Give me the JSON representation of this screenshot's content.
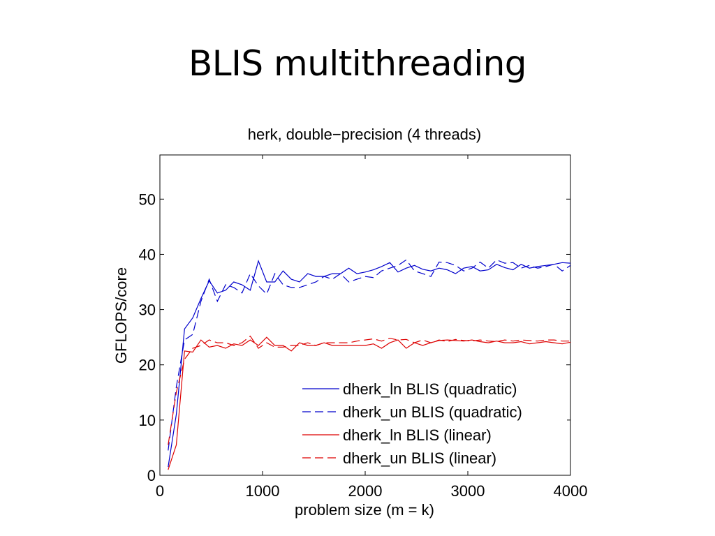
{
  "slide": {
    "title": "BLIS multithreading"
  },
  "chart_data": {
    "type": "line",
    "title": "herk, double−precision (4 threads)",
    "xlabel": "problem size (m = k)",
    "ylabel": "GFLOPS/core",
    "xlim": [
      0,
      4000
    ],
    "ylim": [
      0,
      58
    ],
    "xticks": [
      0,
      1000,
      2000,
      3000,
      4000
    ],
    "xtick_labels": [
      "0",
      "1000",
      "2000",
      "3000",
      "4000"
    ],
    "yticks": [
      0,
      10,
      20,
      30,
      40,
      50
    ],
    "ytick_labels": [
      "0",
      "10",
      "20",
      "30",
      "40",
      "50"
    ],
    "grid": false,
    "legend_position": "bottom-right",
    "x": [
      80,
      160,
      240,
      320,
      400,
      480,
      560,
      640,
      720,
      800,
      880,
      960,
      1040,
      1120,
      1200,
      1280,
      1360,
      1440,
      1520,
      1600,
      1680,
      1760,
      1840,
      1920,
      2000,
      2080,
      2160,
      2240,
      2320,
      2400,
      2480,
      2560,
      2640,
      2720,
      2800,
      2880,
      2960,
      3040,
      3120,
      3200,
      3280,
      3360,
      3440,
      3520,
      3600,
      3680,
      3760,
      3840,
      3920,
      4000
    ],
    "series": [
      {
        "name": "dherk_ln BLIS (quadratic)",
        "color": "#0000cc",
        "dash": "solid",
        "values": [
          1.5,
          11,
          26.5,
          28.5,
          32,
          35.2,
          33,
          33.5,
          35,
          34.5,
          33.5,
          38.8,
          35,
          35,
          37,
          35.5,
          35,
          36.5,
          36,
          36,
          36.5,
          36.5,
          37.5,
          36.5,
          36.8,
          37.2,
          37.8,
          38.5,
          36.8,
          37.5,
          38,
          37.3,
          37,
          37.5,
          37.2,
          36.5,
          37.5,
          37.8,
          37,
          37.2,
          38.2,
          37.6,
          37.2,
          38.2,
          37.5,
          37.8,
          38,
          38.2,
          38.5,
          38.4
        ]
      },
      {
        "name": "dherk_un BLIS (quadratic)",
        "color": "#0000cc",
        "dash": "dashed",
        "values": [
          4.5,
          16,
          24.5,
          25.5,
          31.5,
          35.5,
          31.5,
          34.5,
          34,
          33,
          36.5,
          34.3,
          32.8,
          36.5,
          34.5,
          34,
          34,
          34.5,
          35,
          36,
          35.5,
          36.5,
          35,
          35.5,
          36,
          35.8,
          37,
          37.5,
          38,
          39,
          37,
          36.5,
          36,
          38.6,
          38.5,
          38,
          37,
          37.5,
          38.6,
          37.5,
          39,
          38.4,
          38.5,
          37.5,
          38,
          37.5,
          37.8,
          38.2,
          37,
          38
        ]
      },
      {
        "name": "dherk_ln BLIS (linear)",
        "color": "#dd0000",
        "dash": "solid",
        "values": [
          1,
          5.5,
          22.5,
          22.3,
          24.5,
          23.2,
          23.5,
          23,
          23.8,
          23.5,
          24.5,
          23.5,
          25,
          23.5,
          23.5,
          22.5,
          24,
          23.5,
          23.5,
          24,
          23.5,
          23.5,
          23.5,
          23.5,
          23.5,
          23.8,
          23,
          24,
          24.5,
          23,
          24,
          23.5,
          24,
          24.4,
          24.5,
          24.4,
          24.3,
          24.5,
          24.2,
          24,
          24.3,
          24,
          24,
          24.2,
          23.8,
          24,
          24.2,
          24,
          23.8,
          24.1
        ]
      },
      {
        "name": "dherk_un BLIS (linear)",
        "color": "#dd0000",
        "dash": "dashed",
        "values": [
          5.5,
          15,
          21,
          23,
          23.5,
          24.5,
          24,
          24,
          23.5,
          24,
          25.2,
          23,
          24,
          23.2,
          23.2,
          23.5,
          23.5,
          24,
          23.5,
          24,
          24,
          24,
          24,
          24.3,
          24.5,
          24.7,
          24.3,
          24.8,
          24.5,
          24.6,
          24,
          24.5,
          24,
          24.5,
          24.2,
          24.6,
          24.4,
          24.3,
          24.5,
          24.3,
          24.2,
          24.5,
          24.3,
          24.5,
          24.4,
          24.3,
          24.5,
          24.5,
          24.3,
          24.3
        ]
      }
    ]
  }
}
